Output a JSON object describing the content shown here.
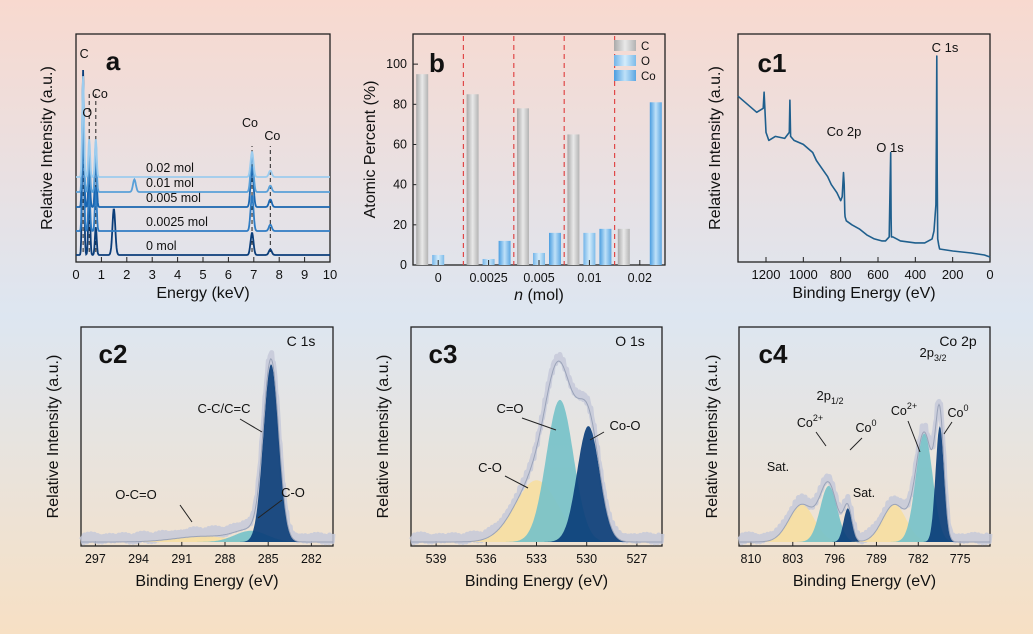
{
  "colors": {
    "bg_top": "#f8d9cf",
    "bg_mid": "#dde6f1",
    "bg_bottom": "#f7e0c4",
    "dark_blue": "#1a4f8c",
    "navy": "#0b3e7a",
    "mid_blue": "#2f7cc3",
    "light_blue": "#8ec4ea",
    "teal": "#77c2c9",
    "yellow": "#f6dea2",
    "gray_bar": "#c9c9c9",
    "envelope": "#c6c9d9",
    "red_dash": "#e04848",
    "c1_line": "#1f5f8d"
  },
  "chart_data": [
    {
      "id": "a",
      "panel_label": "a",
      "type": "line",
      "xlabel": "Energy (keV)",
      "ylabel": "Relative Intensity (a.u.)",
      "xlim": [
        0,
        10
      ],
      "xticks": [
        "0",
        "1",
        "2",
        "3",
        "4",
        "5",
        "6",
        "7",
        "8",
        "9",
        "10"
      ],
      "series": [
        {
          "name": "0 mol",
          "offset": 0,
          "color": "#0b3e7a",
          "peaks": [
            [
              0.28,
              1.0
            ],
            [
              0.52,
              0.35
            ],
            [
              0.78,
              0.15
            ],
            [
              1.49,
              0.25
            ],
            [
              6.93,
              0.12
            ],
            [
              7.65,
              0.03
            ]
          ]
        },
        {
          "name": "0.0025 mol",
          "offset": 1,
          "color": "#2f7cc3",
          "peaks": [
            [
              0.28,
              1.0
            ],
            [
              0.52,
              0.35
            ],
            [
              0.78,
              0.35
            ],
            [
              6.93,
              0.28
            ],
            [
              7.65,
              0.05
            ]
          ]
        },
        {
          "name": "0.005 mol",
          "offset": 2,
          "color": "#1a66b0",
          "peaks": [
            [
              0.28,
              1.0
            ],
            [
              0.52,
              0.3
            ],
            [
              0.78,
              0.45
            ],
            [
              6.93,
              0.32
            ],
            [
              7.65,
              0.06
            ]
          ]
        },
        {
          "name": "0.01 mol",
          "offset": 3,
          "color": "#5aa0d8",
          "peaks": [
            [
              0.28,
              0.9
            ],
            [
              0.52,
              0.3
            ],
            [
              0.78,
              0.4
            ],
            [
              2.3,
              0.1
            ],
            [
              6.93,
              0.3
            ],
            [
              7.65,
              0.05
            ]
          ]
        },
        {
          "name": "0.02 mol",
          "offset": 4,
          "color": "#9cccee",
          "peaks": [
            [
              0.28,
              0.8
            ],
            [
              0.52,
              0.3
            ],
            [
              0.78,
              0.3
            ],
            [
              6.93,
              0.2
            ],
            [
              7.65,
              0.05
            ]
          ]
        }
      ],
      "peak_labels": [
        {
          "text": "C",
          "x": 0.28
        },
        {
          "text": "O",
          "x": 0.52
        },
        {
          "text": "Co",
          "x": 0.78
        },
        {
          "text": "Co",
          "x": 6.93
        },
        {
          "text": "Co",
          "x": 7.65
        }
      ]
    },
    {
      "id": "b",
      "panel_label": "b",
      "type": "bar",
      "xlabel_italic": "n",
      "xlabel_rest": " (mol)",
      "ylabel": "Atomic Percent (%)",
      "ylim": [
        0,
        115
      ],
      "yticks": [
        0,
        20,
        40,
        60,
        80,
        100
      ],
      "categories": [
        "0",
        "0.0025",
        "0.005",
        "0.01",
        "0.02"
      ],
      "series": [
        {
          "name": "C",
          "values": [
            95,
            85,
            78,
            65,
            18
          ]
        },
        {
          "name": "O",
          "values": [
            5,
            3,
            6,
            16,
            0
          ]
        },
        {
          "name": "Co",
          "values": [
            0,
            12,
            16,
            18,
            81
          ]
        }
      ]
    },
    {
      "id": "c1",
      "panel_label": "c1",
      "type": "line",
      "xlabel": "Binding Energy (eV)",
      "ylabel": "Relative Intensity (a.u.)",
      "xlim": [
        1350,
        0
      ],
      "xticks": [
        1200,
        1000,
        800,
        600,
        400,
        200,
        0
      ],
      "x": [
        1350,
        1300,
        1250,
        1215,
        1210,
        1200,
        1185,
        1150,
        1100,
        1075,
        1072,
        1068,
        1050,
        1000,
        950,
        930,
        900,
        870,
        850,
        820,
        800,
        792,
        785,
        781,
        778,
        776,
        770,
        740,
        700,
        660,
        620,
        580,
        560,
        540,
        535,
        532,
        530,
        528,
        520,
        500,
        480,
        400,
        350,
        310,
        300,
        290,
        287,
        285,
        283,
        280,
        275,
        270,
        200,
        100,
        30,
        0
      ],
      "y": [
        80,
        76,
        72,
        74,
        82,
        62,
        58,
        60,
        59,
        62,
        78,
        60,
        58,
        56,
        52,
        48,
        44,
        40,
        36,
        32,
        28,
        30,
        42,
        36,
        22,
        20,
        18,
        16,
        14,
        11,
        9,
        8,
        8,
        10,
        36,
        52,
        20,
        10,
        10,
        9,
        8,
        7,
        7,
        9,
        13,
        26,
        60,
        100,
        42,
        9,
        6,
        4,
        3,
        2,
        1,
        0
      ],
      "annotations": [
        {
          "text": "C 1s",
          "x": 285
        },
        {
          "text": "Co 2p",
          "x": 781
        },
        {
          "text": "O 1s",
          "x": 532
        }
      ]
    },
    {
      "id": "c2",
      "panel_label": "c2",
      "panel_title": "C 1s",
      "type": "area",
      "xlabel": "Binding Energy (eV)",
      "ylabel": "Relative Intensity (a.u.)",
      "xlim": [
        298,
        280.5
      ],
      "xticks": [
        297,
        294,
        291,
        288,
        285,
        282
      ],
      "components": [
        {
          "name": "O-C=O",
          "center": 289.5,
          "height": 0.03,
          "width": 2.8,
          "color": "#f6dea2"
        },
        {
          "name": "C-O",
          "center": 286.2,
          "height": 0.06,
          "width": 1.6,
          "color": "#77c2c9"
        },
        {
          "name": "C-C/C=C",
          "center": 284.8,
          "height": 0.95,
          "width": 0.75,
          "color": "#0b3e7a"
        }
      ]
    },
    {
      "id": "c3",
      "panel_label": "c3",
      "panel_title": "O 1s",
      "type": "area",
      "xlabel": "Binding Energy (eV)",
      "ylabel": "Relative Intensity (a.u.)",
      "xlim": [
        540.5,
        525.5
      ],
      "xticks": [
        539,
        536,
        533,
        530,
        527
      ],
      "components": [
        {
          "name": "C-O",
          "center": 533.0,
          "height": 0.33,
          "width": 1.8,
          "color": "#f6dea2"
        },
        {
          "name": "C=O",
          "center": 531.6,
          "height": 0.76,
          "width": 1.15,
          "color": "#77c2c9"
        },
        {
          "name": "Co-O",
          "center": 529.9,
          "height": 0.62,
          "width": 0.95,
          "color": "#0b3e7a"
        }
      ]
    },
    {
      "id": "c4",
      "panel_label": "c4",
      "panel_title": "Co 2p",
      "type": "area",
      "xlabel": "Binding Energy (eV)",
      "ylabel": "Relative Intensity (a.u.)",
      "xlim": [
        812,
        770
      ],
      "xticks": [
        810,
        803,
        796,
        789,
        782,
        775
      ],
      "components": [
        {
          "name": "Sat.",
          "center": 801.5,
          "height": 0.2,
          "width": 3.0,
          "color": "#f6dea2"
        },
        {
          "name": "Co²⁺ 2p1/2",
          "center": 797.0,
          "height": 0.3,
          "width": 2.0,
          "color": "#77c2c9"
        },
        {
          "name": "Co⁰ 2p1/2",
          "center": 793.8,
          "height": 0.18,
          "width": 1.0,
          "color": "#0b3e7a"
        },
        {
          "name": "Sat.",
          "center": 786.0,
          "height": 0.2,
          "width": 2.8,
          "color": "#f6dea2"
        },
        {
          "name": "Co²⁺ 2p3/2",
          "center": 781.0,
          "height": 0.58,
          "width": 2.0,
          "color": "#77c2c9"
        },
        {
          "name": "Co⁰ 2p3/2",
          "center": 778.4,
          "height": 0.62,
          "width": 1.0,
          "color": "#0b3e7a"
        }
      ],
      "annotations": {
        "sat": "Sat.",
        "co2": "Co",
        "co2_sup": "2+",
        "co0": "Co",
        "co0_sup": "0",
        "p12_main": "2p",
        "p12_sub": "1/2",
        "p32_main": "2p",
        "p32_sub": "3/2"
      }
    }
  ]
}
